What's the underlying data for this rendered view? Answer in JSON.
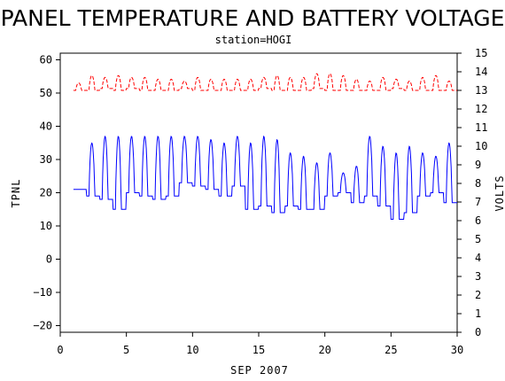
{
  "chart_data": {
    "type": "line",
    "title": "PANEL TEMPERATURE AND BATTERY VOLTAGE",
    "subtitle": "station=HOGI",
    "xlabel": "SEP 2007",
    "ylabel_left": "TPNL",
    "ylabel_right": "VOLTS",
    "xlim": [
      0,
      30
    ],
    "ylim_left": [
      -22,
      62
    ],
    "ylim_right": [
      0,
      15
    ],
    "x_ticks": [
      0,
      5,
      10,
      15,
      20,
      25,
      30
    ],
    "y_ticks_left": [
      -20,
      -10,
      0,
      10,
      20,
      30,
      40,
      50,
      60
    ],
    "y_ticks_right": [
      0,
      1,
      2,
      3,
      4,
      5,
      6,
      7,
      8,
      9,
      10,
      11,
      12,
      13,
      14,
      15
    ],
    "grid": false,
    "colors": {
      "temperature": "#0000ff",
      "voltage": "#ff0000",
      "axes": "#000000"
    },
    "series": [
      {
        "axis": "left",
        "style": "solid",
        "daily_lows": [
          21,
          19,
          18,
          15,
          20,
          19,
          18,
          19,
          23,
          22,
          21,
          19,
          22,
          15,
          16,
          14,
          16,
          15,
          15,
          19,
          20,
          17,
          19,
          16,
          12,
          14,
          19,
          20,
          17
        ],
        "daily_highs": [
          21,
          35,
          37,
          37,
          37,
          37,
          37,
          37,
          37,
          37,
          36,
          35,
          37,
          35,
          37,
          36,
          32,
          31,
          29,
          32,
          26,
          28,
          37,
          34,
          32,
          34,
          32,
          31,
          35
        ],
        "x_start": 1.0,
        "x_end": 30.0
      },
      {
        "axis": "right",
        "style": "dashed",
        "daily_lows": [
          13.0,
          13.0,
          13.1,
          13.0,
          13.1,
          13.0,
          13.0,
          13.0,
          13.1,
          13.0,
          13.0,
          13.0,
          13.0,
          13.0,
          13.1,
          13.0,
          13.0,
          13.0,
          13.1,
          13.0,
          13.0,
          13.0,
          13.0,
          13.0,
          13.1,
          13.0,
          13.0,
          13.0,
          13.0
        ],
        "daily_highs": [
          13.4,
          13.8,
          13.7,
          13.8,
          13.7,
          13.7,
          13.6,
          13.6,
          13.5,
          13.7,
          13.6,
          13.6,
          13.6,
          13.6,
          13.7,
          13.8,
          13.7,
          13.7,
          13.9,
          13.9,
          13.8,
          13.6,
          13.5,
          13.7,
          13.6,
          13.5,
          13.7,
          13.8,
          13.5
        ],
        "x_start": 1.0,
        "x_end": 30.0
      }
    ]
  }
}
